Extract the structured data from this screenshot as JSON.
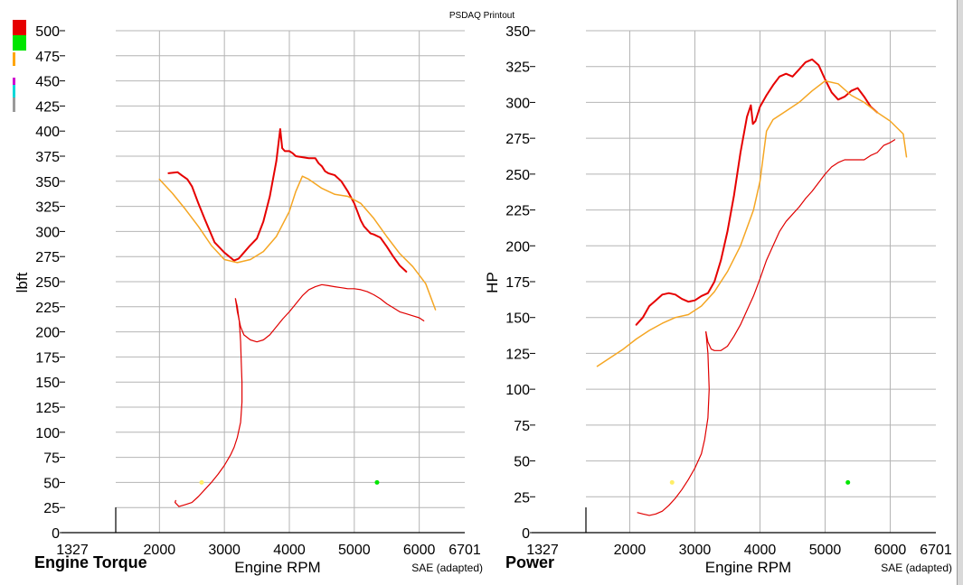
{
  "page": {
    "title": "PSDAQ Printout"
  },
  "legend_swatches": [
    {
      "name": "red",
      "color": "#e60000"
    },
    {
      "name": "green",
      "color": "#00e600"
    },
    {
      "name": "orange",
      "color": "#ffa500"
    },
    {
      "name": "magenta",
      "color": "#d000d0"
    },
    {
      "name": "cyan",
      "color": "#00d8d8"
    },
    {
      "name": "gray",
      "color": "#9a9a9a"
    }
  ],
  "chart_data": [
    {
      "type": "line",
      "name": "Engine Torque",
      "xlabel": "Engine RPM",
      "ylabel": "lbft",
      "note": "SAE (adapted)",
      "xlim": [
        1327,
        6701
      ],
      "ylim": [
        0,
        500
      ],
      "x_ticks": [
        1327,
        2000,
        3000,
        4000,
        5000,
        6000,
        6701
      ],
      "y_ticks": [
        0,
        25,
        50,
        75,
        100,
        125,
        150,
        175,
        200,
        225,
        250,
        275,
        300,
        325,
        350,
        375,
        400,
        425,
        450,
        475,
        500
      ],
      "grid": true,
      "series": [
        {
          "color": "#e60000",
          "width": 2,
          "x": [
            2140,
            2280,
            2340,
            2430,
            2500,
            2600,
            2700,
            2850,
            3000,
            3150,
            3220,
            3300,
            3380,
            3500,
            3600,
            3700,
            3800,
            3860,
            3890,
            3930,
            4000,
            4050,
            4100,
            4200,
            4300,
            4400,
            4450,
            4500,
            4550,
            4600,
            4700,
            4800,
            4900,
            5000,
            5100,
            5150,
            5250,
            5300,
            5400,
            5500,
            5600,
            5700,
            5800
          ],
          "y": [
            358,
            359,
            356,
            352,
            345,
            328,
            312,
            289,
            279,
            271,
            273,
            279,
            285,
            293,
            310,
            335,
            370,
            402,
            383,
            380,
            380,
            378,
            375,
            374,
            373,
            373,
            368,
            365,
            360,
            358,
            356,
            350,
            340,
            328,
            311,
            305,
            298,
            297,
            294,
            285,
            275,
            266,
            260
          ]
        },
        {
          "color": "#f5a623",
          "width": 1.5,
          "x": [
            2000,
            2200,
            2400,
            2600,
            2800,
            3000,
            3200,
            3400,
            3600,
            3800,
            4000,
            4100,
            4200,
            4300,
            4500,
            4700,
            4900,
            5100,
            5300,
            5500,
            5700,
            5900,
            6100,
            6250
          ],
          "y": [
            352,
            338,
            322,
            305,
            286,
            272,
            269,
            272,
            280,
            295,
            320,
            340,
            355,
            352,
            343,
            337,
            335,
            328,
            313,
            295,
            278,
            265,
            248,
            222
          ]
        },
        {
          "color": "#e00000",
          "width": 1.2,
          "x": [
            3170,
            3200,
            3230,
            3250,
            3260,
            3270,
            3270,
            3250,
            3200,
            3150,
            3100,
            3000,
            2900,
            2800,
            2700,
            2600,
            2500,
            2400,
            2300,
            2240,
            2250
          ],
          "y": [
            233,
            225,
            210,
            190,
            170,
            150,
            130,
            110,
            95,
            85,
            78,
            67,
            58,
            50,
            43,
            36,
            30,
            28,
            26,
            30,
            32
          ]
        },
        {
          "color": "#e00000",
          "width": 1.2,
          "x": [
            3170,
            3200,
            3250,
            3300,
            3400,
            3500,
            3600,
            3700,
            3800,
            3900,
            4000,
            4100,
            4200,
            4300,
            4400,
            4500,
            4600,
            4700,
            4800,
            4900,
            5000,
            5100,
            5200,
            5300,
            5400,
            5500,
            5600,
            5700,
            5800,
            5900,
            6000,
            6070
          ],
          "y": [
            233,
            220,
            205,
            197,
            192,
            190,
            192,
            197,
            205,
            213,
            220,
            228,
            236,
            242,
            245,
            247,
            246,
            245,
            244,
            243,
            243,
            242,
            240,
            237,
            233,
            228,
            224,
            220,
            218,
            216,
            214,
            211
          ]
        }
      ],
      "markers": [
        {
          "x": 2650,
          "y": 50,
          "color": "#ffee66"
        },
        {
          "x": 5350,
          "y": 50,
          "color": "#00e600"
        }
      ]
    },
    {
      "type": "line",
      "name": "Power",
      "xlabel": "Engine RPM",
      "ylabel": "HP",
      "note": "SAE (adapted)",
      "xlim": [
        1327,
        6701
      ],
      "ylim": [
        0,
        350
      ],
      "x_ticks": [
        1327,
        2000,
        3000,
        4000,
        5000,
        6000,
        6701
      ],
      "y_ticks": [
        0,
        25,
        50,
        75,
        100,
        125,
        150,
        175,
        200,
        225,
        250,
        275,
        300,
        325,
        350
      ],
      "grid": true,
      "series": [
        {
          "color": "#e60000",
          "width": 2,
          "x": [
            2100,
            2200,
            2300,
            2400,
            2500,
            2600,
            2700,
            2800,
            2900,
            3000,
            3100,
            3200,
            3300,
            3400,
            3500,
            3600,
            3700,
            3800,
            3860,
            3890,
            3930,
            4000,
            4100,
            4200,
            4300,
            4400,
            4500,
            4600,
            4700,
            4800,
            4900,
            5000,
            5100,
            5200,
            5300,
            5400,
            5500,
            5600,
            5700,
            5800
          ],
          "y": [
            145,
            150,
            158,
            162,
            166,
            167,
            166,
            163,
            161,
            162,
            165,
            167,
            175,
            190,
            210,
            235,
            265,
            290,
            298,
            285,
            287,
            297,
            305,
            312,
            318,
            320,
            318,
            323,
            328,
            330,
            326,
            316,
            307,
            302,
            304,
            308,
            310,
            304,
            297,
            293
          ]
        },
        {
          "color": "#f5a623",
          "width": 1.5,
          "x": [
            1500,
            1700,
            1900,
            2100,
            2300,
            2500,
            2700,
            2900,
            3100,
            3300,
            3500,
            3700,
            3900,
            4000,
            4100,
            4200,
            4400,
            4600,
            4800,
            5000,
            5200,
            5400,
            5600,
            5800,
            6000,
            6200,
            6250
          ],
          "y": [
            116,
            122,
            128,
            135,
            141,
            146,
            150,
            152,
            158,
            168,
            182,
            200,
            225,
            245,
            280,
            288,
            294,
            300,
            308,
            315,
            313,
            305,
            300,
            293,
            287,
            278,
            262
          ]
        },
        {
          "color": "#e00000",
          "width": 1.2,
          "x": [
            3170,
            3200,
            3220,
            3200,
            3150,
            3100,
            3000,
            2900,
            2800,
            2700,
            2600,
            2500,
            2400,
            2300,
            2200,
            2120
          ],
          "y": [
            140,
            125,
            100,
            80,
            65,
            55,
            45,
            37,
            30,
            24,
            19,
            15,
            13,
            12,
            13,
            14
          ]
        },
        {
          "color": "#e00000",
          "width": 1.2,
          "x": [
            3170,
            3200,
            3250,
            3300,
            3400,
            3500,
            3600,
            3700,
            3800,
            3900,
            4000,
            4100,
            4200,
            4300,
            4400,
            4500,
            4600,
            4700,
            4800,
            4900,
            5000,
            5100,
            5200,
            5300,
            5400,
            5500,
            5600,
            5700,
            5800,
            5900,
            6000,
            6070
          ],
          "y": [
            140,
            133,
            128,
            127,
            127,
            130,
            137,
            145,
            155,
            165,
            177,
            190,
            200,
            210,
            217,
            222,
            227,
            233,
            238,
            244,
            250,
            255,
            258,
            260,
            260,
            260,
            260,
            263,
            265,
            270,
            272,
            274
          ]
        }
      ],
      "markers": [
        {
          "x": 2650,
          "y": 35,
          "color": "#ffee66"
        },
        {
          "x": 5350,
          "y": 35,
          "color": "#00e600"
        }
      ]
    }
  ]
}
